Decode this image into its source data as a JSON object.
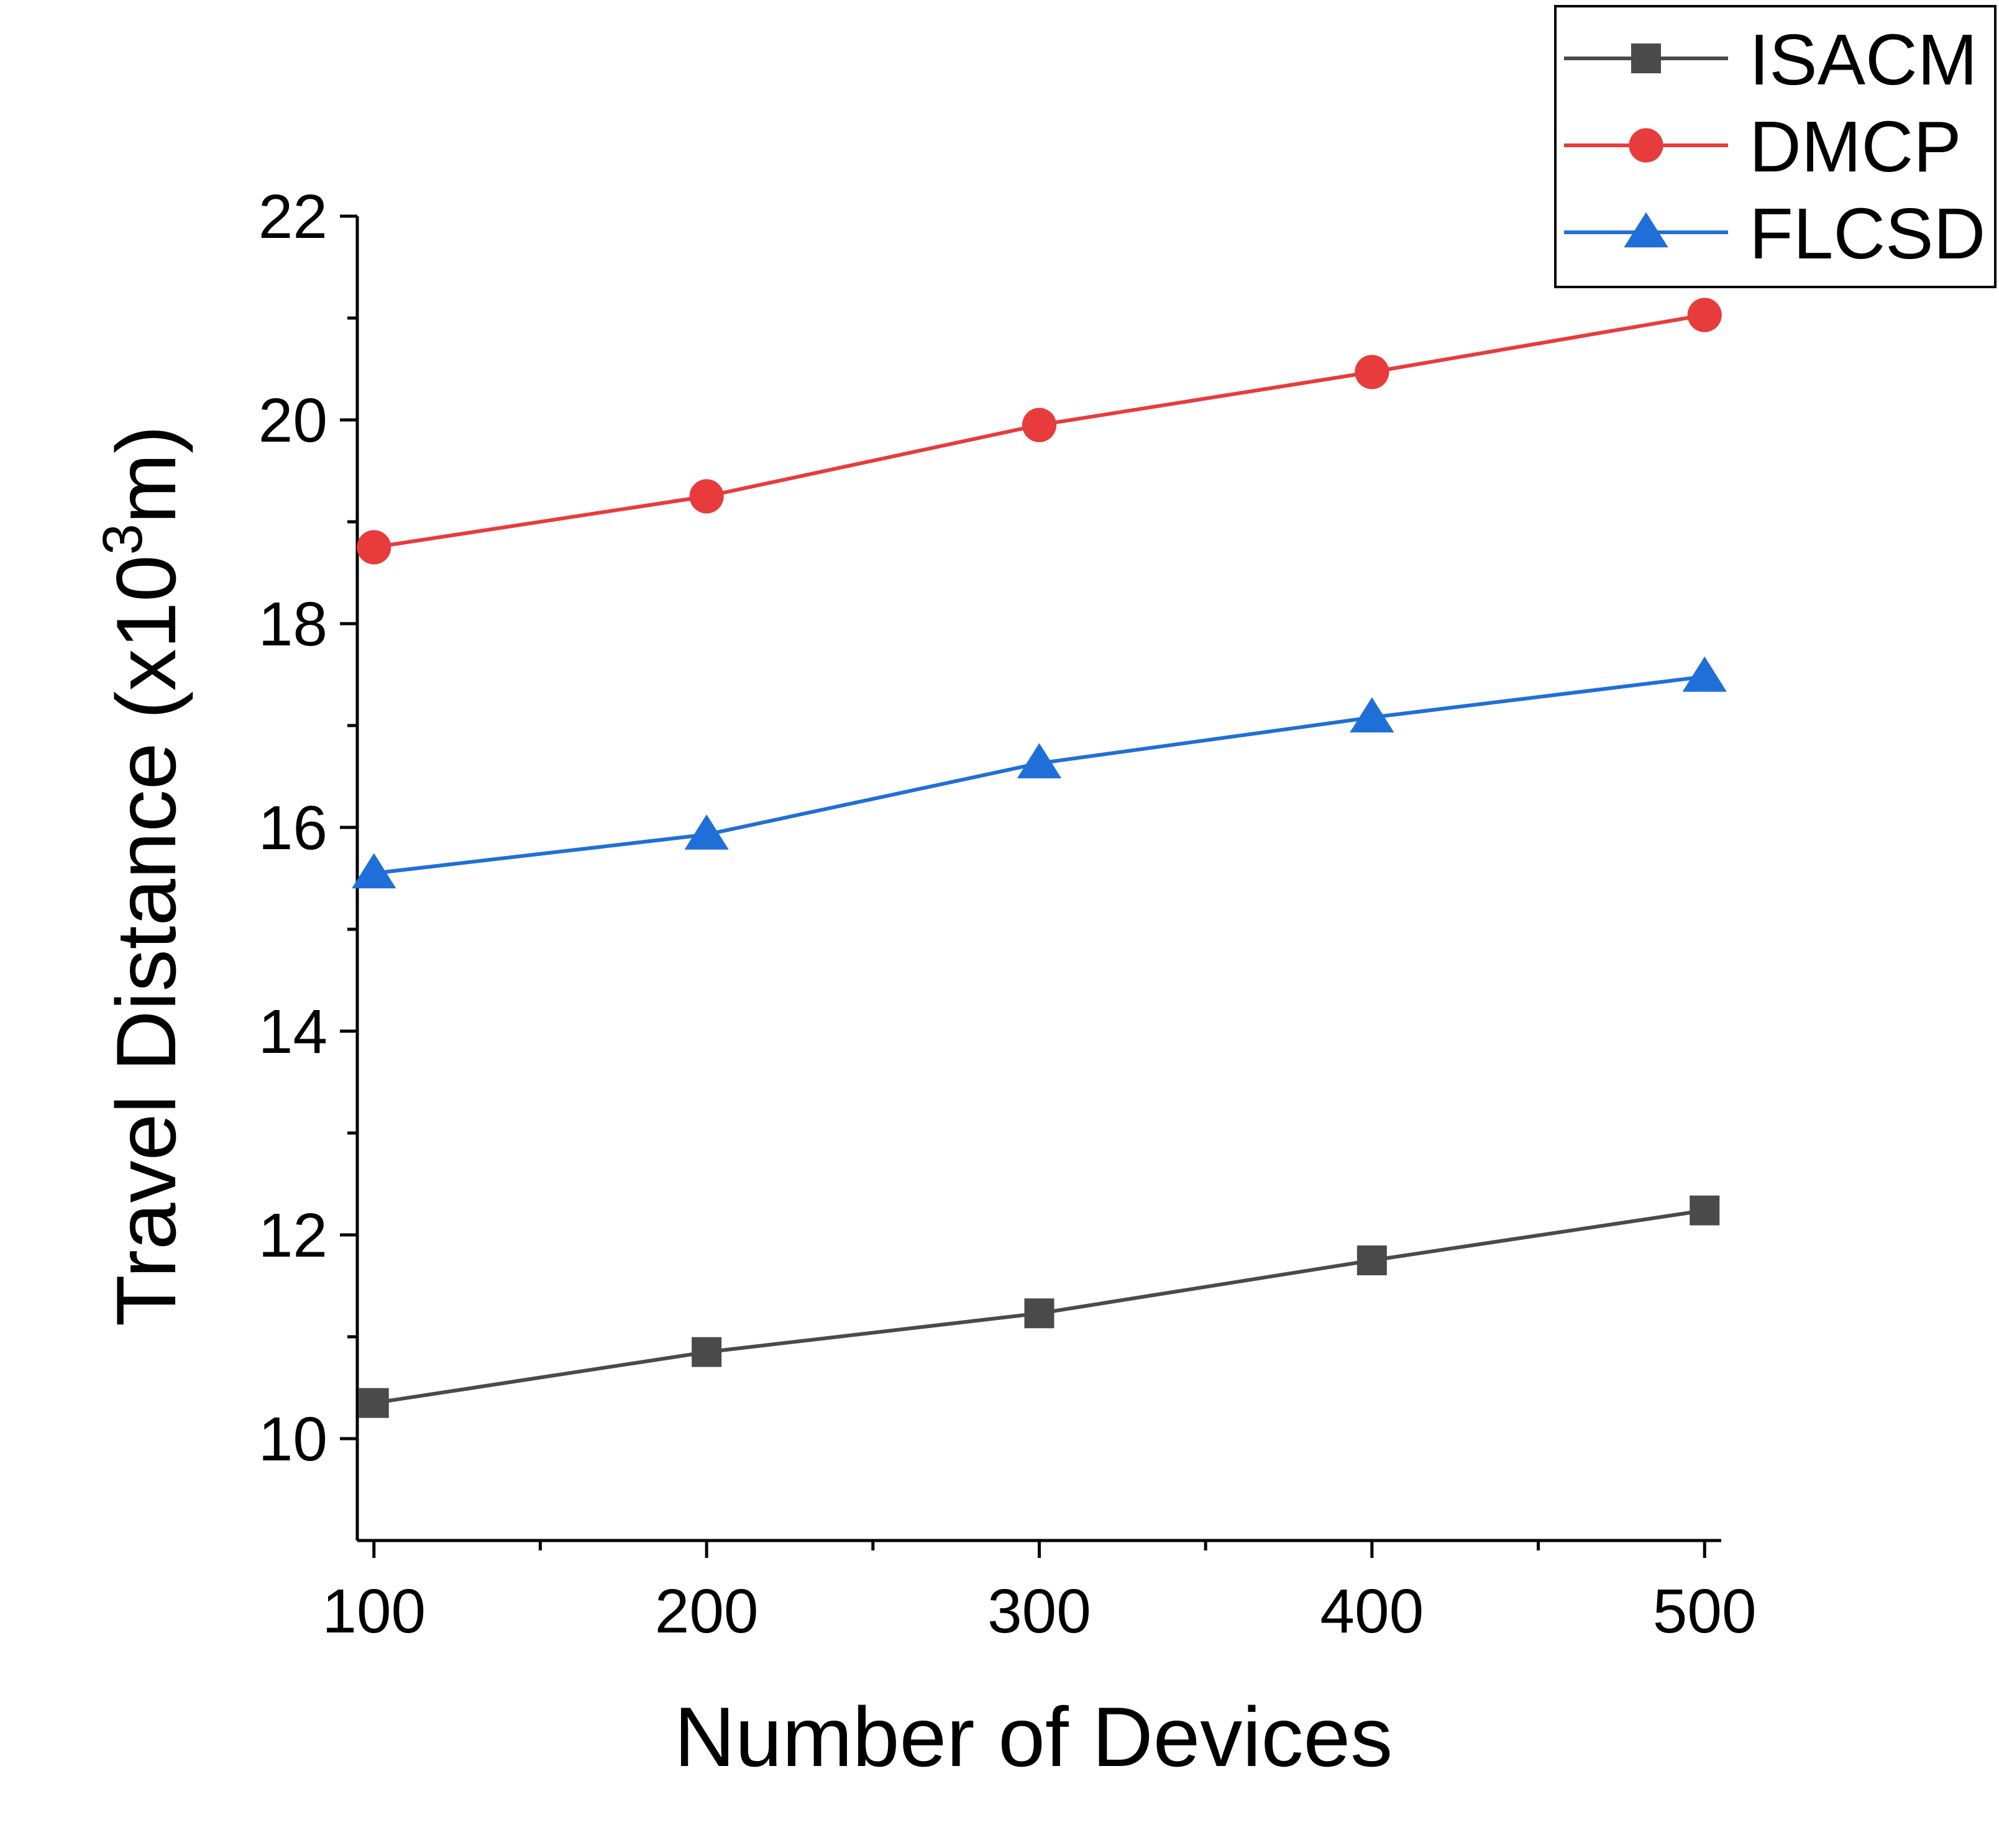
{
  "chart_data": {
    "type": "line",
    "title": "",
    "xlabel": "Number of Devices",
    "ylabel_main": "Travel Distance (x10",
    "ylabel_sup": "3",
    "ylabel_tail": "m)",
    "x": [
      100,
      200,
      300,
      400,
      500
    ],
    "x_ticks": [
      "100",
      "200",
      "300",
      "400",
      "500"
    ],
    "y_ticks": [
      "10",
      "12",
      "14",
      "16",
      "18",
      "20",
      "22"
    ],
    "xlim": [
      95,
      505
    ],
    "ylim": [
      9,
      22
    ],
    "grid": false,
    "legend_position": "top-right",
    "series": [
      {
        "name": "ISACM",
        "values": [
          10.35,
          10.85,
          11.23,
          11.75,
          12.24
        ],
        "color": "#4a4a4a",
        "marker": "square"
      },
      {
        "name": "DMCP",
        "values": [
          18.75,
          19.25,
          19.95,
          20.47,
          21.03
        ],
        "color": "#e83b3b",
        "marker": "circle"
      },
      {
        "name": "FLCSD",
        "values": [
          15.55,
          15.93,
          16.63,
          17.08,
          17.48
        ],
        "color": "#1f6fd8",
        "marker": "triangle"
      }
    ]
  }
}
